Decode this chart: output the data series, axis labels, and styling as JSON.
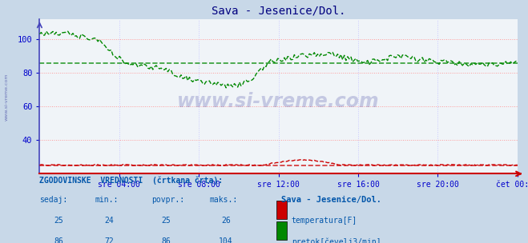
{
  "title": "Sava - Jesenice/Dol.",
  "title_color": "#000080",
  "bg_color": "#c8d8e8",
  "plot_bg_color": "#f0f4f8",
  "grid_color": "#ff9999",
  "grid_color_v": "#c8c8ff",
  "tick_color": "#0000cc",
  "x_tick_labels": [
    "sre 04:00",
    "sre 08:00",
    "sre 12:00",
    "sre 16:00",
    "sre 20:00",
    "čet 00:00"
  ],
  "x_tick_positions": [
    0.1667,
    0.3333,
    0.5,
    0.6667,
    0.8333,
    1.0
  ],
  "ylim": [
    20,
    112
  ],
  "yticks": [
    40,
    60,
    80,
    100
  ],
  "watermark": "www.si-vreme.com",
  "watermark_color": "#000080",
  "watermark_alpha": 0.18,
  "legend_title": "Sava - Jesenice/Dol.",
  "legend_items": [
    {
      "label": "temperatura[F]",
      "color": "#cc0000"
    },
    {
      "label": "pretok[čevelj3/min]",
      "color": "#008800"
    }
  ],
  "stats_header": "ZGODOVINSKE  VREDNOSTI  (črtkana črta):",
  "stats_cols": [
    "sedaj:",
    "min.:",
    "povpr.:",
    "maks.:"
  ],
  "stats_rows": [
    [
      25,
      24,
      25,
      26
    ],
    [
      86,
      72,
      86,
      104
    ]
  ],
  "avg_temp": 25,
  "avg_flow": 86,
  "temp_color": "#cc0000",
  "flow_color": "#008800",
  "spine_color": "#4444aa",
  "axis_arrow_color": "#cc0000",
  "left_spine_color": "#4444bb"
}
